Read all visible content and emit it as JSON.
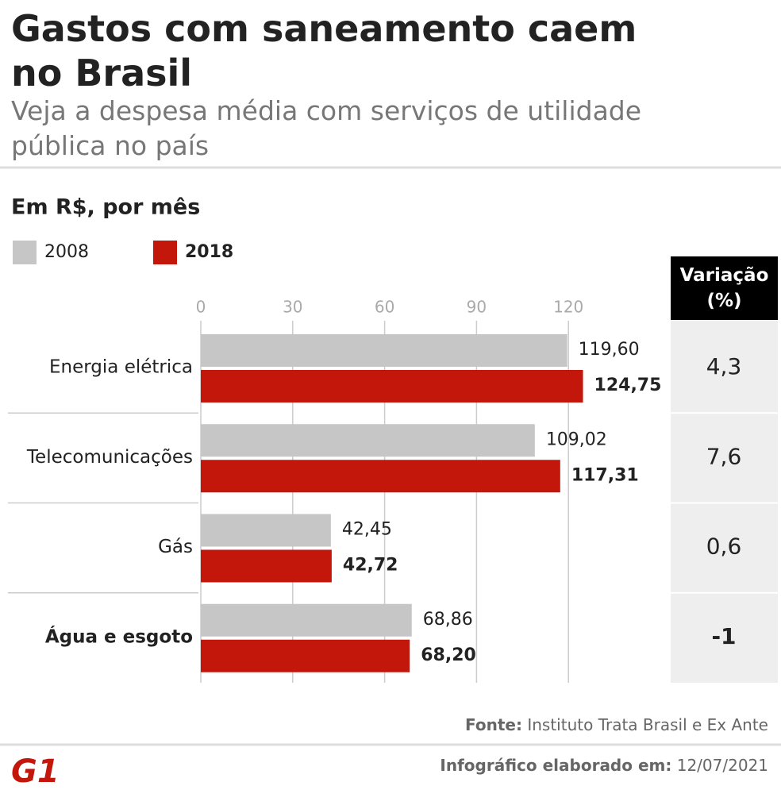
{
  "chart_data": {
    "type": "bar",
    "orientation": "horizontal",
    "title": "Gastos com saneamento caem no Brasil",
    "subtitle": "Veja a despesa média com serviços de utilidade pública no país",
    "unit_label": "Em R$, por mês",
    "categories": [
      "Energia elétrica",
      "Telecomunicações",
      "Gás",
      "Água e esgoto"
    ],
    "highlight_category": 3,
    "series": [
      {
        "name": "2008",
        "color": "#c6c6c6",
        "bold": false,
        "values": [
          119.6,
          109.02,
          42.45,
          68.86
        ],
        "value_labels": [
          "119,60",
          "109,02",
          "42,45",
          "68,86"
        ]
      },
      {
        "name": "2018",
        "color": "#c4170c",
        "bold": true,
        "values": [
          124.75,
          117.31,
          42.72,
          68.2
        ],
        "value_labels": [
          "124,75",
          "117,31",
          "42,72",
          "68,20"
        ]
      }
    ],
    "xlim": [
      0,
      150
    ],
    "xticks": [
      0,
      30,
      60,
      90,
      120
    ],
    "grid": true,
    "variation": {
      "title": "Variação (%)",
      "values": [
        4.3,
        7.6,
        0.6,
        -1
      ],
      "value_labels": [
        "4,3",
        "7,6",
        "0,6",
        "-1"
      ]
    },
    "source_label": "Fonte:",
    "source": "Instituto Trata Brasil e Ex Ante",
    "date_label": "Infográfico elaborado em:",
    "date": "12/07/2021",
    "logo": "G1"
  }
}
